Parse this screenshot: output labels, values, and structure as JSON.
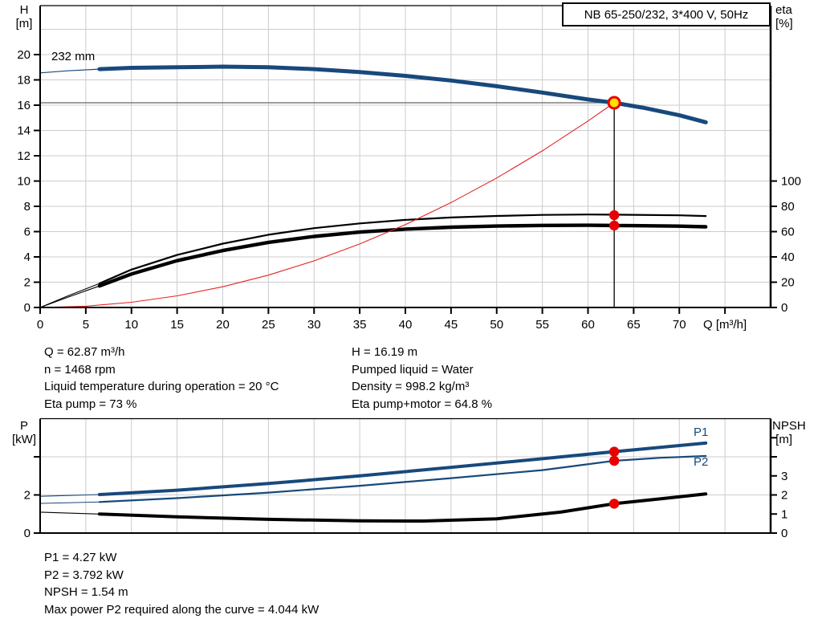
{
  "title_box": "NB 65-250/232, 3*400 V, 50Hz",
  "labels": {
    "h_axis": "H\n[m]",
    "eta_axis": "eta\n[%]",
    "q_axis": "Q [m³/h]",
    "p_axis": "P\n[kW]",
    "npsh_axis": "NPSH\n [m]",
    "impeller": "232 mm",
    "p1": "P1",
    "p2": "P2"
  },
  "info_top_left": [
    "Q = 62.87 m³/h",
    "n = 1468 rpm",
    "Liquid temperature during operation = 20 °C",
    "Eta pump = 73 %"
  ],
  "info_top_right": [
    "H = 16.19 m",
    "Pumped liquid = Water",
    "Density = 998.2 kg/m³",
    "Eta pump+motor = 64.8 %"
  ],
  "info_bottom": [
    "P1 = 4.27 kW",
    "P2 = 3.792 kW",
    "NPSH = 1.54 m",
    "Max power P2 required along the curve = 4.044 kW"
  ],
  "colors": {
    "curve_blue": "#17497c",
    "curve_black": "#000000",
    "system_red": "#e82222",
    "marker_red": "#e80000",
    "duty_yellow": "#ffe000",
    "grid": "#cccccc",
    "duty_gray": "#7f7f7f"
  },
  "chart_data": [
    {
      "id": "top",
      "type": "line",
      "title": "NB 65-250/232, 3*400 V, 50Hz",
      "xlabel": "Q [m³/h]",
      "ylabel_left": "H [m]",
      "ylabel_right": "eta [%]",
      "xlim": [
        0,
        80
      ],
      "ylim_left": [
        0,
        24
      ],
      "ylim_right": [
        0,
        240
      ],
      "grid": true,
      "x_axis": {
        "labeled": [
          0,
          5,
          10,
          15,
          20,
          25,
          30,
          35,
          40,
          45,
          50,
          55,
          60,
          65,
          70
        ],
        "unlabeled": [
          75
        ]
      },
      "left_axis": {
        "scale": "H",
        "labeled": [
          0,
          2,
          4,
          6,
          8,
          10,
          12,
          14,
          16,
          18,
          20
        ],
        "unlabeled": []
      },
      "right_axis": {
        "scale": "eta",
        "labeled": [
          0,
          20,
          40,
          60,
          80,
          100
        ],
        "unlabeled": []
      },
      "grid_x": [
        5,
        10,
        15,
        20,
        25,
        30,
        35,
        40,
        45,
        50,
        55,
        60,
        65,
        70,
        75
      ],
      "grid_y": [
        2,
        4,
        6,
        8,
        10,
        12,
        14,
        16,
        18,
        20,
        22
      ],
      "duty_point": {
        "q": 62.87,
        "v": 16.19,
        "scale": "H"
      },
      "series": [
        {
          "name": "head-curve-232mm",
          "scale": "H",
          "color": "#17497c",
          "segments": [
            {
              "width": 1.2,
              "q": [
                0,
                3,
                6.5
              ],
              "v": [
                18.55,
                18.72,
                18.85
              ]
            },
            {
              "width": 5,
              "q": [
                6.5,
                10,
                15,
                20,
                25,
                30,
                35,
                40,
                45,
                50,
                55,
                60,
                62.87,
                66,
                70,
                72.9
              ],
              "v": [
                18.85,
                18.95,
                19.0,
                19.05,
                19.0,
                18.85,
                18.62,
                18.32,
                17.95,
                17.5,
                17.0,
                16.45,
                16.19,
                15.8,
                15.2,
                14.65
              ]
            }
          ]
        },
        {
          "name": "eta-pump-curve",
          "scale": "eta",
          "color": "#000000",
          "segments": [
            {
              "width": 1.1,
              "q": [
                0,
                3,
                6.5
              ],
              "v": [
                0,
                9,
                19
              ]
            },
            {
              "width": 2.2,
              "q": [
                6.5,
                10,
                15,
                20,
                25,
                30,
                35,
                40,
                45,
                50,
                55,
                60,
                62.87,
                65,
                70,
                72.9
              ],
              "v": [
                19,
                30,
                41.5,
                50.5,
                57.5,
                62.7,
                66.5,
                69.3,
                71.2,
                72.4,
                73.2,
                73.5,
                73.4,
                73.3,
                72.9,
                72.3
              ]
            }
          ]
        },
        {
          "name": "eta-pump-motor-curve",
          "scale": "eta",
          "color": "#000000",
          "segments": [
            {
              "width": 1.1,
              "q": [
                0,
                3,
                6.5
              ],
              "v": [
                0,
                8,
                17
              ]
            },
            {
              "width": 4.4,
              "q": [
                6.5,
                10,
                15,
                20,
                25,
                30,
                35,
                40,
                45,
                50,
                55,
                60,
                62.87,
                65,
                70,
                72.9
              ],
              "v": [
                17,
                26.5,
                37,
                45,
                51.5,
                56.2,
                59.6,
                62,
                63.5,
                64.4,
                64.9,
                65.0,
                64.8,
                64.7,
                64.3,
                63.8
              ]
            }
          ]
        },
        {
          "name": "system-curve",
          "scale": "H",
          "color": "#e82222",
          "segments": [
            {
              "width": 1.1,
              "q": [
                0,
                5,
                10,
                15,
                20,
                25,
                30,
                35,
                40,
                45,
                50,
                55,
                60,
                62.87
              ],
              "v": [
                0,
                0.1,
                0.41,
                0.92,
                1.64,
                2.56,
                3.69,
                5.02,
                6.55,
                8.3,
                10.24,
                12.39,
                14.75,
                16.19
              ]
            }
          ]
        }
      ],
      "markers": [
        {
          "name": "eta-pump-marker",
          "q": 62.87,
          "v": 73,
          "scale": "eta",
          "r": 6.2,
          "fill": "#e80000"
        },
        {
          "name": "eta-pump-motor-marker",
          "q": 62.87,
          "v": 64.8,
          "scale": "eta",
          "r": 6.2,
          "fill": "#e80000"
        },
        {
          "name": "duty-point-marker",
          "q": 62.87,
          "v": 16.19,
          "scale": "H",
          "r": 7,
          "fill": "#ffe000",
          "stroke": "#e80000",
          "stroke_w": 3
        }
      ]
    },
    {
      "id": "bottom",
      "type": "line",
      "xlabel": "",
      "ylabel_left": "P [kW]",
      "ylabel_right": "NPSH [m]",
      "xlim": [
        0,
        80
      ],
      "ylim_left": [
        0,
        6
      ],
      "ylim_right": [
        0,
        6
      ],
      "grid": true,
      "x_axis": {
        "labeled": [],
        "unlabeled": []
      },
      "left_axis": {
        "scale": "P",
        "labeled": [
          0,
          2
        ],
        "unlabeled": [
          4
        ]
      },
      "right_axis": {
        "scale": "npsh",
        "labeled": [
          0,
          1,
          2,
          3
        ],
        "unlabeled": [
          4,
          5
        ]
      },
      "grid_x": [
        5,
        10,
        15,
        20,
        25,
        30,
        35,
        40,
        45,
        50,
        55,
        60,
        65,
        70,
        75
      ],
      "grid_y": [
        2,
        4
      ],
      "series": [
        {
          "name": "p1-curve",
          "scale": "P",
          "color": "#17497c",
          "segments": [
            {
              "width": 1.1,
              "q": [
                0,
                3,
                6.5
              ],
              "v": [
                1.93,
                1.97,
                2.02
              ]
            },
            {
              "width": 4,
              "q": [
                6.5,
                15,
                25,
                35,
                45,
                55,
                62.87,
                68,
                72.9
              ],
              "v": [
                2.02,
                2.25,
                2.6,
                3.0,
                3.45,
                3.9,
                4.27,
                4.5,
                4.72
              ]
            }
          ]
        },
        {
          "name": "p2-curve",
          "scale": "P",
          "color": "#17497c",
          "segments": [
            {
              "width": 1,
              "q": [
                0,
                3,
                6.5
              ],
              "v": [
                1.56,
                1.59,
                1.63
              ]
            },
            {
              "width": 2.2,
              "q": [
                6.5,
                15,
                25,
                35,
                45,
                55,
                62.87,
                68,
                72.9
              ],
              "v": [
                1.63,
                1.83,
                2.12,
                2.48,
                2.88,
                3.3,
                3.79,
                3.95,
                4.04
              ]
            }
          ]
        },
        {
          "name": "npsh-curve",
          "scale": "npsh",
          "color": "#000000",
          "segments": [
            {
              "width": 1.1,
              "q": [
                0,
                3,
                6.5
              ],
              "v": [
                1.1,
                1.05,
                1.0
              ]
            },
            {
              "width": 4,
              "q": [
                6.5,
                15,
                25,
                35,
                42,
                50,
                57,
                62.87,
                68,
                72.9
              ],
              "v": [
                1.0,
                0.85,
                0.72,
                0.64,
                0.63,
                0.75,
                1.1,
                1.54,
                1.8,
                2.05
              ]
            }
          ]
        }
      ],
      "markers": [
        {
          "name": "p1-marker",
          "q": 62.87,
          "v": 4.27,
          "scale": "P",
          "r": 6.2,
          "fill": "#e80000"
        },
        {
          "name": "p2-marker",
          "q": 62.87,
          "v": 3.792,
          "scale": "P",
          "r": 6.2,
          "fill": "#e80000"
        },
        {
          "name": "npsh-marker",
          "q": 62.87,
          "v": 1.54,
          "scale": "npsh",
          "r": 6.2,
          "fill": "#e80000"
        }
      ]
    }
  ]
}
